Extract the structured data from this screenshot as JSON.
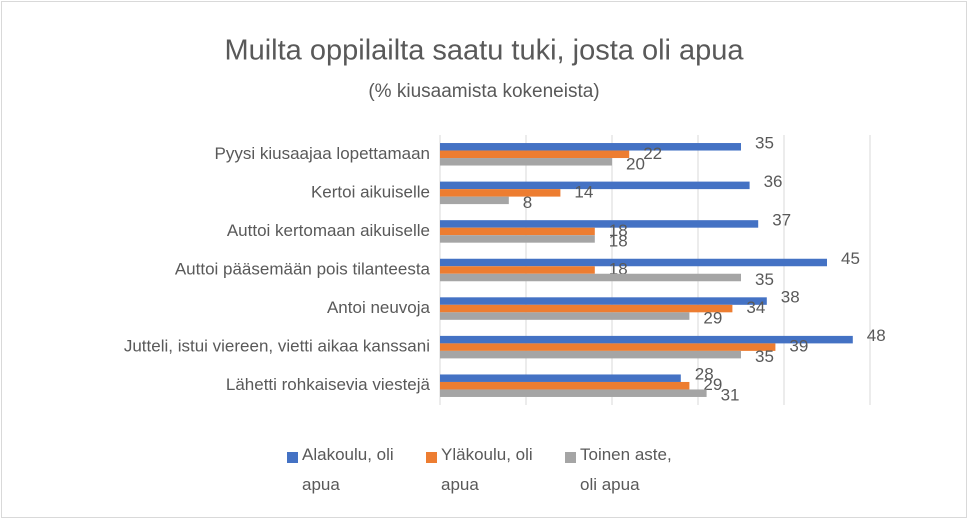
{
  "chart_data": {
    "type": "hbar",
    "title": "Muilta oppilailta saatu tuki, josta oli apua",
    "subtitle": "(% kiusaamista kokeneista)",
    "categories": [
      "Pyysi kiusaajaa lopettamaan",
      "Kertoi aikuiselle",
      "Auttoi kertomaan aikuiselle",
      "Auttoi pääsemään pois tilanteesta",
      "Antoi neuvoja",
      "Jutteli, istui viereen, vietti aikaa kanssani",
      "Lähetti rohkaisevia viestejä"
    ],
    "series": [
      {
        "name": "Alakoulu, oli apua",
        "color": "#4472c4",
        "values": [
          35,
          36,
          37,
          45,
          38,
          48,
          28
        ]
      },
      {
        "name": "Yläkoulu, oli apua",
        "color": "#ed7d31",
        "values": [
          22,
          14,
          18,
          18,
          34,
          39,
          29
        ]
      },
      {
        "name": "Toinen aste, oli apua",
        "color": "#a5a5a5",
        "values": [
          20,
          8,
          18,
          35,
          29,
          35,
          31
        ]
      }
    ],
    "xlim": [
      0,
      50
    ],
    "xticks": [
      0,
      10,
      20,
      30,
      40,
      50
    ],
    "grid": true,
    "legend": "bottom"
  }
}
